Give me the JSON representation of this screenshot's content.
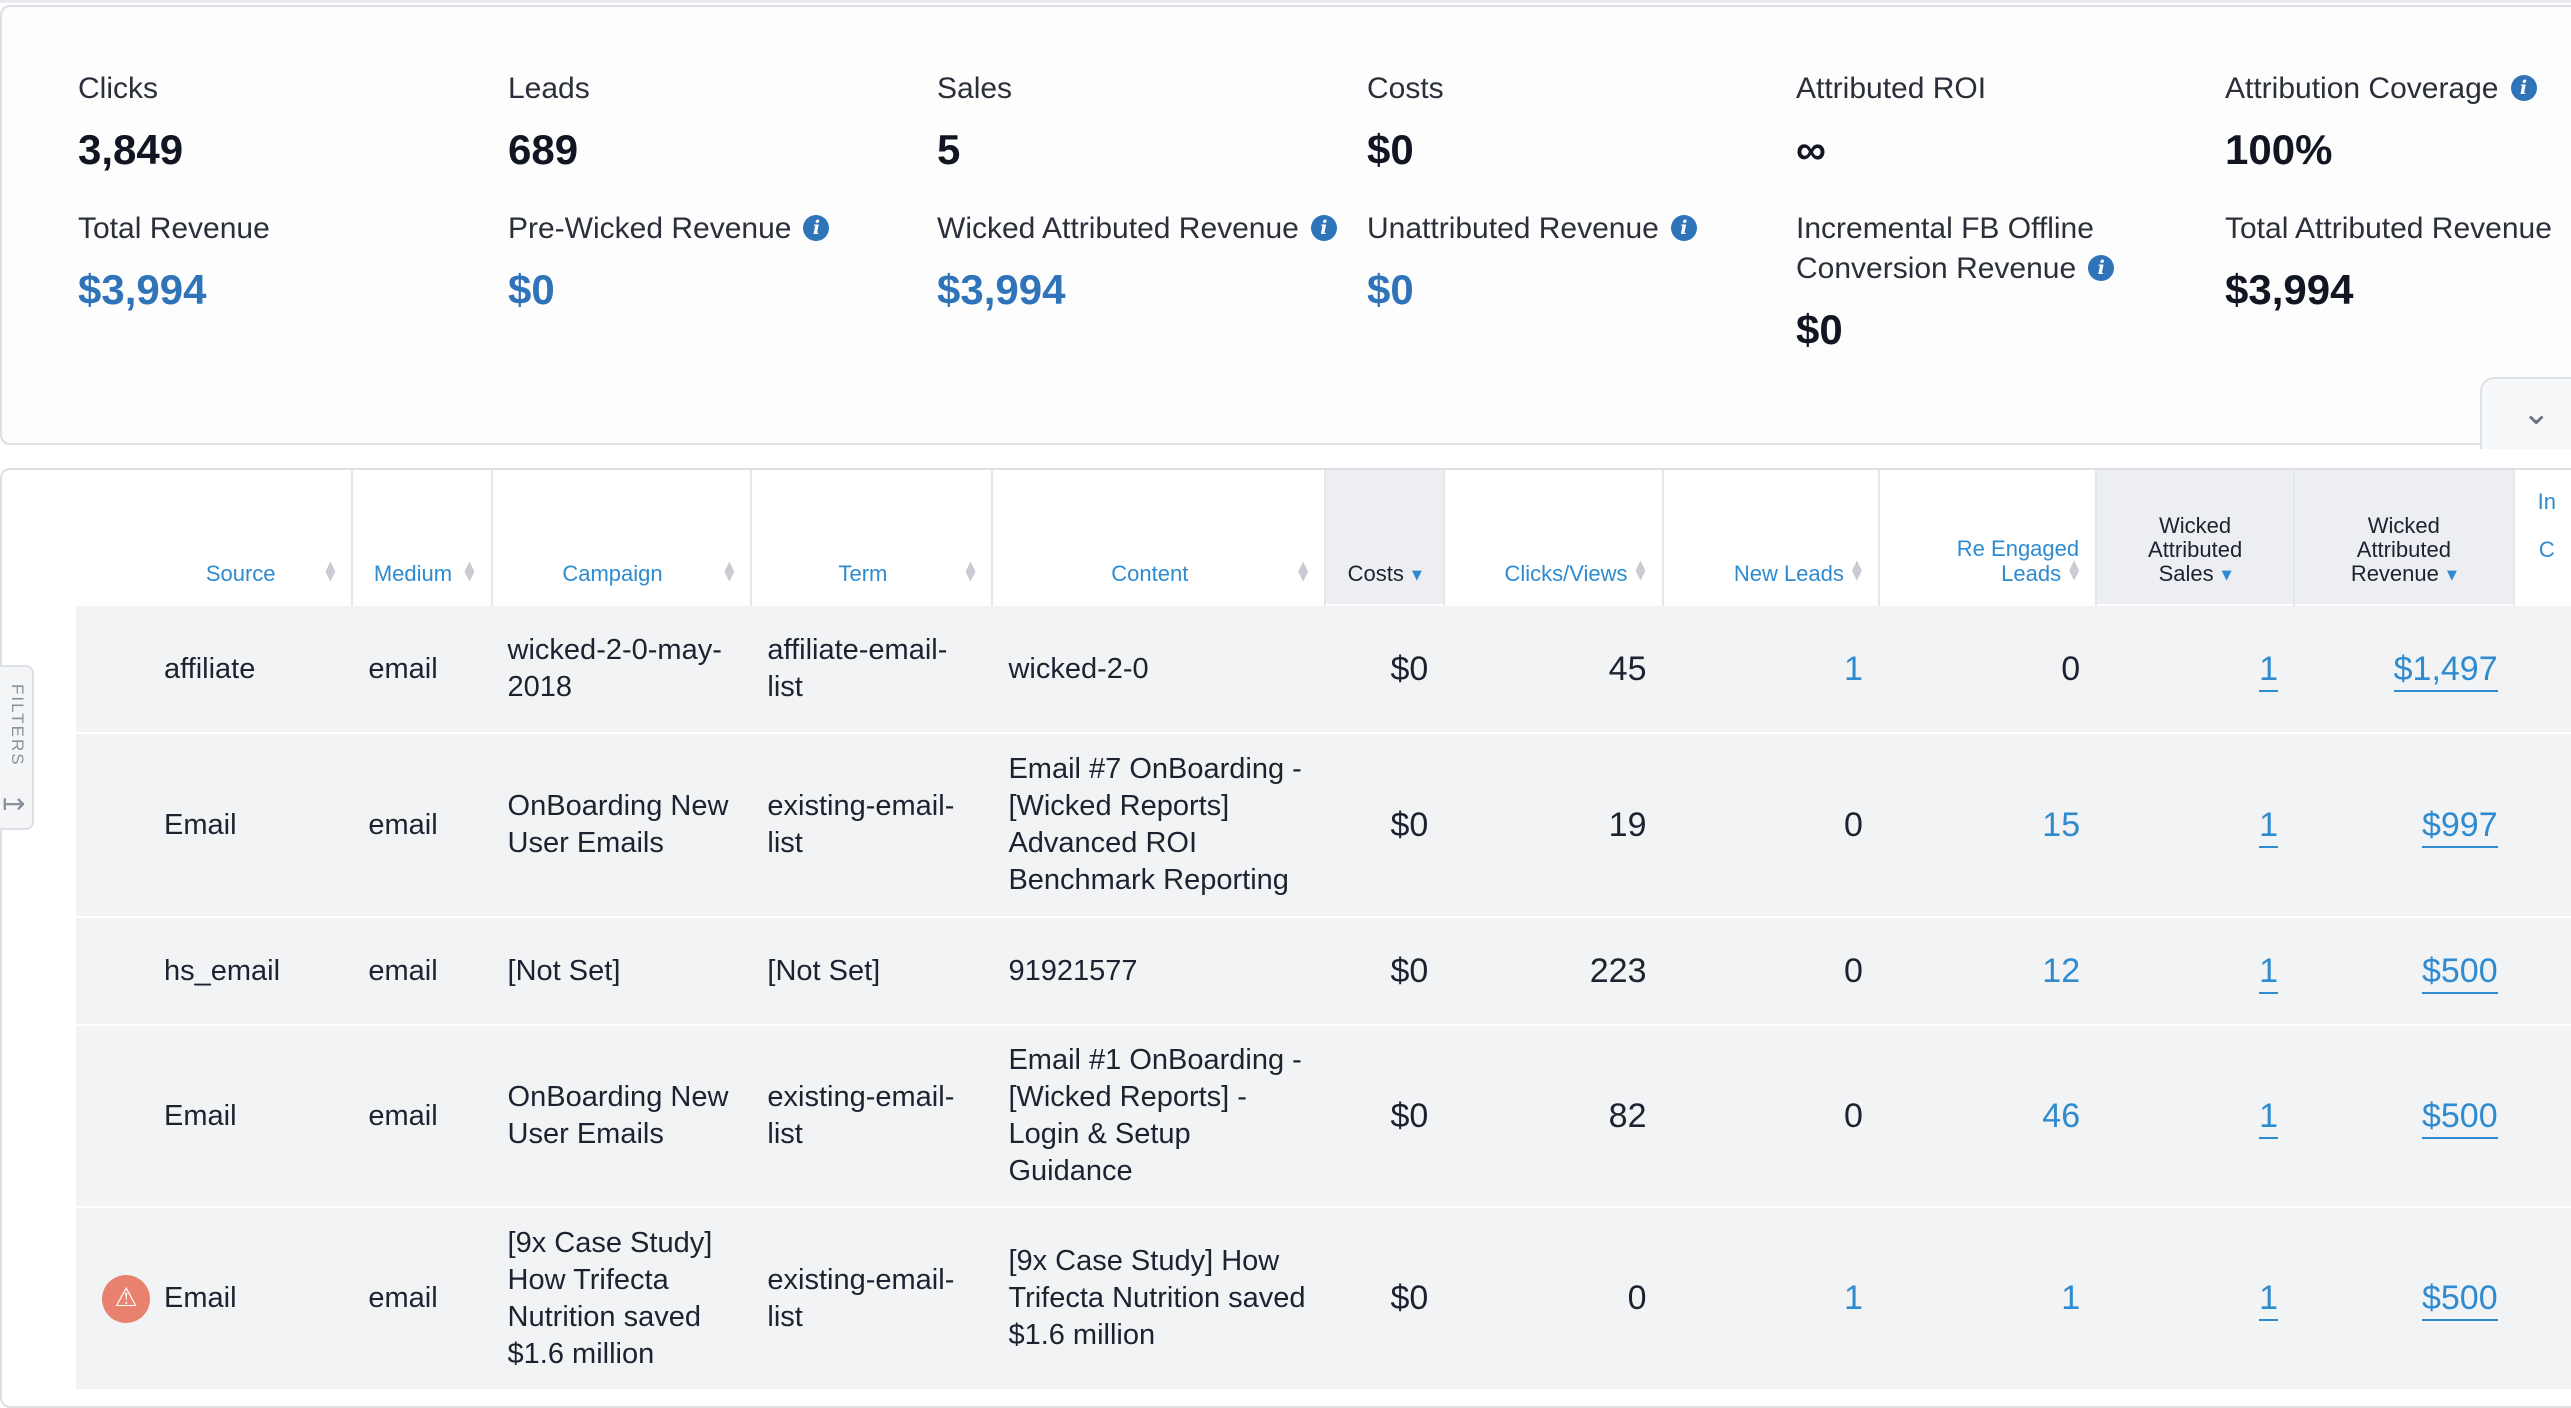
{
  "summary": {
    "row1": [
      {
        "label": "Clicks",
        "value": "3,849"
      },
      {
        "label": "Leads",
        "value": "689"
      },
      {
        "label": "Sales",
        "value": "5"
      },
      {
        "label": "Costs",
        "value": "$0"
      },
      {
        "label": "Attributed ROI",
        "value": "∞"
      },
      {
        "label": "Attribution Coverage",
        "value": "100%"
      }
    ],
    "row2": [
      {
        "label": "Total Revenue",
        "value": "$3,994"
      },
      {
        "label": "Pre-Wicked Revenue",
        "value": "$0"
      },
      {
        "label": "Wicked Attributed Revenue",
        "value": "$3,994"
      },
      {
        "label": "Unattributed Revenue",
        "value": "$0"
      },
      {
        "label_line1": "Incremental FB Offline",
        "label_line2": "Conversion Revenue",
        "value": "$0"
      },
      {
        "label": "Total Attributed Revenue",
        "value": "$3,994"
      }
    ],
    "info_glyph": "i",
    "colors": {
      "value_blue": "#2f73b8",
      "link_blue": "#2f8bd0",
      "warning": "#e8826f"
    }
  },
  "filters_tab": {
    "label": "FILTERS"
  },
  "table": {
    "headers": {
      "source": "Source",
      "medium": "Medium",
      "campaign": "Campaign",
      "term": "Term",
      "content": "Content",
      "costs": "Costs",
      "clicks": "Clicks/Views",
      "new_leads": "New Leads",
      "reengaged_1": "Re Engaged",
      "reengaged_2": "Leads",
      "wa_sales_1": "Wicked",
      "wa_sales_2": "Attributed",
      "wa_sales_3": "Sales",
      "wa_rev_1": "Wicked",
      "wa_rev_2": "Attributed",
      "wa_rev_3": "Revenue",
      "partial_1": "In",
      "partial_2": "C"
    },
    "rows": [
      {
        "source": "affiliate",
        "medium": "email",
        "campaign": "wicked-2-0-may-2018",
        "term": "affiliate-email-list",
        "content": "wicked-2-0",
        "costs": "$0",
        "clicks": "45",
        "new_leads": "1",
        "reengaged": "0",
        "sales": "1",
        "revenue": "$1,497"
      },
      {
        "source": "Email",
        "medium": "email",
        "campaign": "OnBoarding New User Emails",
        "term": "existing-email-list",
        "content": "Email #7 OnBoarding - [Wicked Reports] Advanced ROI Benchmark Reporting",
        "costs": "$0",
        "clicks": "19",
        "new_leads": "0",
        "reengaged": "15",
        "sales": "1",
        "revenue": "$997"
      },
      {
        "source": "hs_email",
        "medium": "email",
        "campaign": "[Not Set]",
        "term": "[Not Set]",
        "content": "91921577",
        "costs": "$0",
        "clicks": "223",
        "new_leads": "0",
        "reengaged": "12",
        "sales": "1",
        "revenue": "$500"
      },
      {
        "source": "Email",
        "medium": "email",
        "campaign": "OnBoarding New User Emails",
        "term": "existing-email-list",
        "content": "Email #1 OnBoarding - [Wicked Reports] - Login & Setup Guidance",
        "costs": "$0",
        "clicks": "82",
        "new_leads": "0",
        "reengaged": "46",
        "sales": "1",
        "revenue": "$500"
      },
      {
        "source": "Email",
        "medium": "email",
        "campaign": "[9x Case Study] How Trifecta Nutrition saved $1.6 million",
        "term": "existing-email-list",
        "content": "[9x Case Study] How Trifecta Nutrition saved $1.6 million",
        "costs": "$0",
        "clicks": "0",
        "new_leads": "1",
        "reengaged": "1",
        "sales": "1",
        "revenue": "$500",
        "warning_icon": "warning-icon"
      }
    ]
  }
}
